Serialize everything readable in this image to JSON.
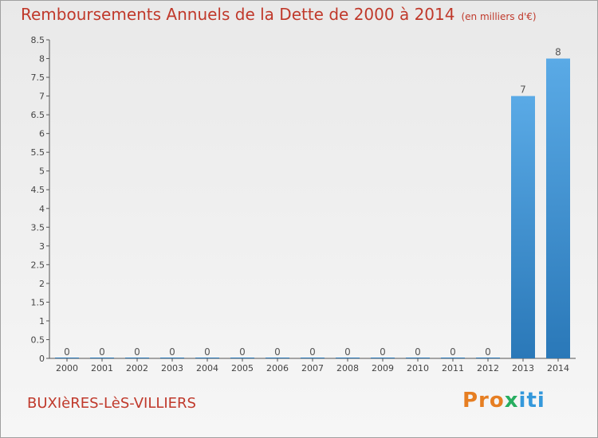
{
  "header": {
    "title": "Remboursements Annuels de la Dette de 2000 à 2014",
    "unit": "(en milliers d'€)"
  },
  "footer": {
    "commune": "BUXIèRES-LèS-VILLIERS",
    "logo_part1": "Pro",
    "logo_part2": "x",
    "logo_part3": "iti"
  },
  "colors": {
    "bar_top": "#5aaae6",
    "bar_bottom": "#2a78b8",
    "title": "#c0392b"
  },
  "chart_data": {
    "type": "bar",
    "title": "Remboursements Annuels de la Dette de 2000 à 2014",
    "categories": [
      "2000",
      "2001",
      "2002",
      "2003",
      "2004",
      "2005",
      "2006",
      "2007",
      "2008",
      "2009",
      "2010",
      "2011",
      "2012",
      "2013",
      "2014"
    ],
    "values": [
      0,
      0,
      0,
      0,
      0,
      0,
      0,
      0,
      0,
      0,
      0,
      0,
      0,
      7,
      8
    ],
    "data_labels": [
      "0",
      "0",
      "0",
      "0",
      "0",
      "0",
      "0",
      "0",
      "0",
      "0",
      "0",
      "0",
      "0",
      "7",
      "8"
    ],
    "y_ticks": [
      "0",
      "0.5",
      "1",
      "1.5",
      "2",
      "2.5",
      "3",
      "3.5",
      "4",
      "4.5",
      "5",
      "5.5",
      "6",
      "6.5",
      "7",
      "7.5",
      "8",
      "8.5"
    ],
    "ylim": [
      0,
      8.5
    ],
    "grid": false
  }
}
